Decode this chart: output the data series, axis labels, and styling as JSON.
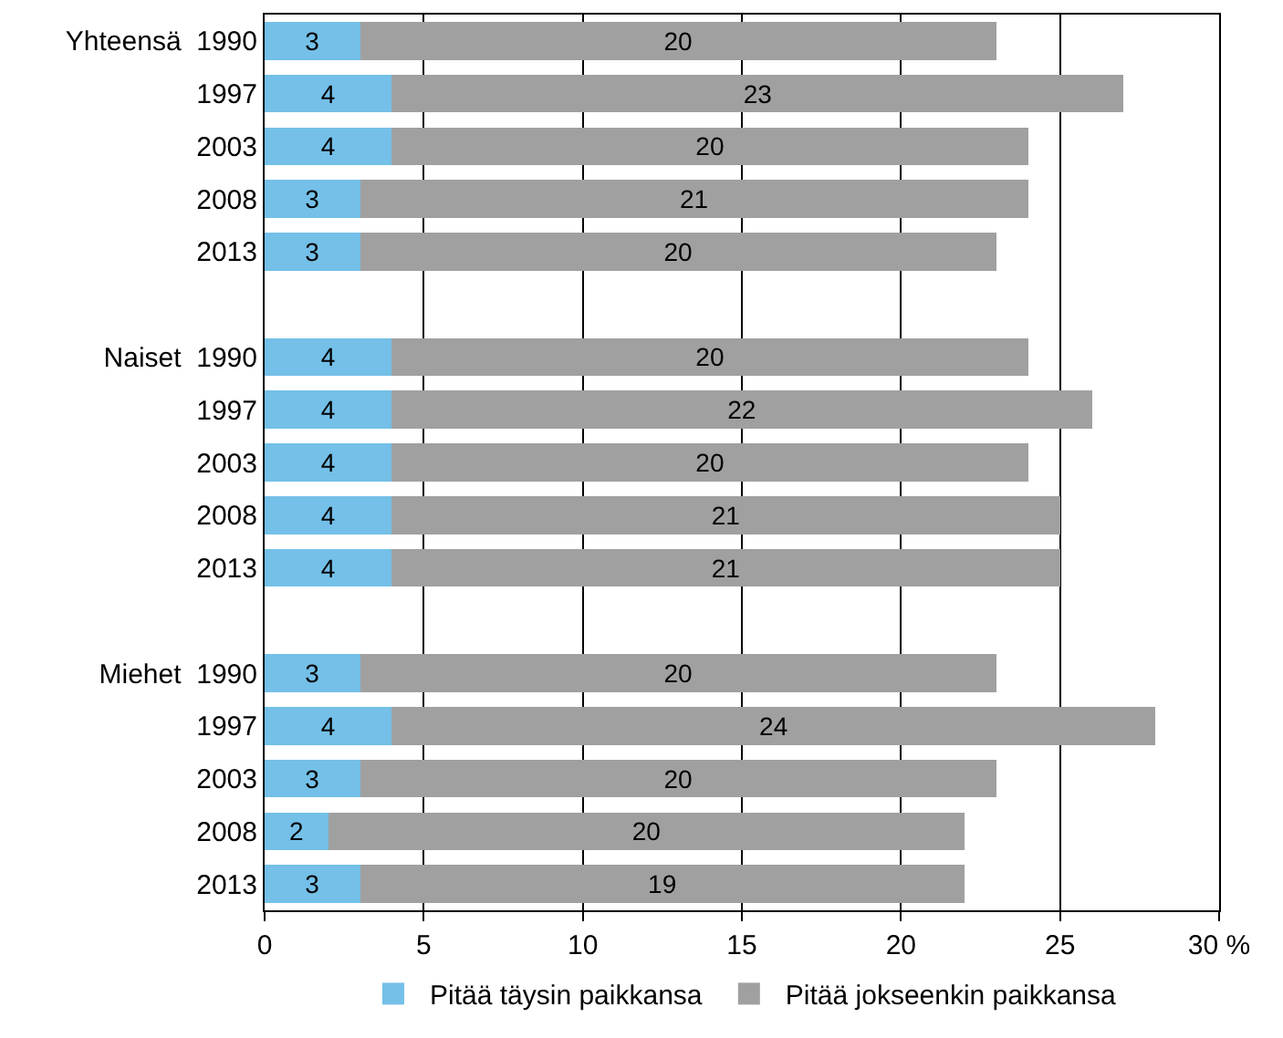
{
  "chart_data": {
    "type": "bar",
    "orientation": "horizontal",
    "stacked": true,
    "data_labels": true,
    "grid": "x",
    "legend": "bottom",
    "categories": [
      "Yhteensä  1990",
      "1997",
      "2003",
      "2008",
      "2013",
      null,
      "Naiset  1990",
      "1997",
      "2003",
      "2008",
      "2013",
      null,
      "Miehet  1990",
      "1997",
      "2003",
      "2008",
      "2013"
    ],
    "series": [
      {
        "name": "Pitää täysin paikkansa",
        "color": "#74c0e8",
        "values": [
          3,
          4,
          4,
          3,
          3,
          null,
          4,
          4,
          4,
          4,
          4,
          null,
          3,
          4,
          3,
          2,
          3
        ]
      },
      {
        "name": "Pitää jokseenkin paikkansa",
        "color": "#a0a0a0",
        "values": [
          20,
          23,
          20,
          21,
          20,
          null,
          20,
          22,
          20,
          21,
          21,
          null,
          20,
          24,
          20,
          20,
          19
        ]
      }
    ],
    "xlim": [
      0,
      30
    ],
    "xticks": [
      0,
      5,
      10,
      15,
      20,
      25,
      {
        "value": 30,
        "label": "30 %"
      }
    ]
  }
}
